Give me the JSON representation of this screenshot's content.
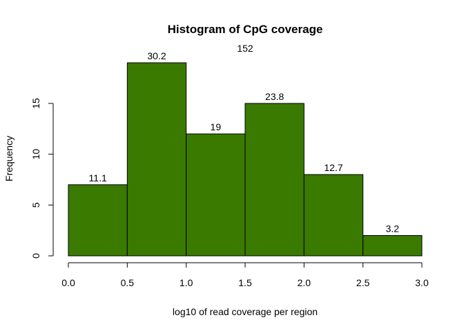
{
  "chart_data": {
    "type": "bar",
    "title": "Histogram of CpG coverage",
    "subtitle": "152",
    "xlabel": "log10 of read coverage per region",
    "ylabel": "Frequency",
    "bins": [
      [
        0.0,
        0.5
      ],
      [
        0.5,
        1.0
      ],
      [
        1.0,
        1.5
      ],
      [
        1.5,
        2.0
      ],
      [
        2.0,
        2.5
      ],
      [
        2.5,
        3.0
      ]
    ],
    "values": [
      7,
      19,
      12,
      15,
      8,
      2
    ],
    "data_labels": [
      "11.1",
      "30.2",
      "19",
      "23.8",
      "12.7",
      "3.2"
    ],
    "xticks": [
      "0.0",
      "0.5",
      "1.0",
      "1.5",
      "2.0",
      "2.5",
      "3.0"
    ],
    "yticks": [
      "0",
      "5",
      "10",
      "15"
    ],
    "xlim": [
      0.0,
      3.0
    ],
    "ylim": [
      0,
      19
    ],
    "grid": false,
    "bar_color": "#3a7a00",
    "bar_edge_color": "#000000"
  }
}
